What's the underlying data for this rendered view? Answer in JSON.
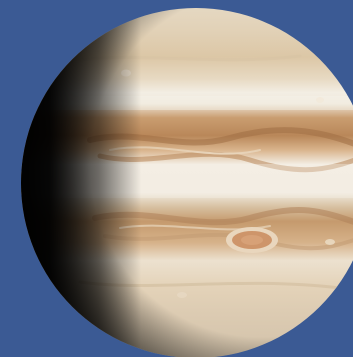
{
  "scene": {
    "subject": "jupiter",
    "background_color": "#3b5a94",
    "palette": {
      "bright_band": "#f1ece1",
      "zone_cream": "#e8dcc6",
      "belt_tan": "#c99f72",
      "belt_brown": "#a9784f",
      "red_spot": "#c98a5c",
      "shadow": "#121210"
    }
  }
}
